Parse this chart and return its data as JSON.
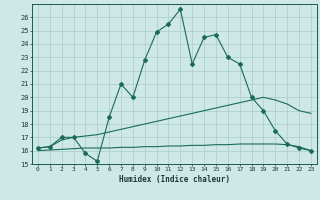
{
  "xlabel": "Humidex (Indice chaleur)",
  "ylabel": "",
  "bg_color": "#cde8e5",
  "grid_color": "#aacccc",
  "line_color": "#1a6b5a",
  "xlim": [
    -0.5,
    23.5
  ],
  "ylim": [
    15,
    27
  ],
  "yticks": [
    15,
    16,
    17,
    18,
    19,
    20,
    21,
    22,
    23,
    24,
    25,
    26
  ],
  "xticks": [
    0,
    1,
    2,
    3,
    4,
    5,
    6,
    7,
    8,
    9,
    10,
    11,
    12,
    13,
    14,
    15,
    16,
    17,
    18,
    19,
    20,
    21,
    22,
    23
  ],
  "line1_x": [
    0,
    1,
    2,
    3,
    4,
    5,
    6,
    7,
    8,
    9,
    10,
    11,
    12,
    13,
    14,
    15,
    16,
    17,
    18,
    19,
    20,
    21,
    22,
    23
  ],
  "line1_y": [
    16.2,
    16.3,
    17.0,
    17.0,
    15.8,
    15.2,
    18.5,
    21.0,
    20.0,
    22.8,
    24.9,
    25.5,
    26.6,
    22.5,
    24.5,
    24.7,
    23.0,
    22.5,
    20.0,
    19.0,
    17.5,
    16.5,
    16.2,
    16.0
  ],
  "line2_x": [
    0,
    1,
    2,
    3,
    4,
    5,
    6,
    7,
    8,
    9,
    10,
    11,
    12,
    13,
    14,
    15,
    16,
    17,
    18,
    19,
    20,
    21,
    22,
    23
  ],
  "line2_y": [
    16.2,
    16.3,
    16.8,
    17.0,
    17.1,
    17.2,
    17.4,
    17.6,
    17.8,
    18.0,
    18.2,
    18.4,
    18.6,
    18.8,
    19.0,
    19.2,
    19.4,
    19.6,
    19.8,
    20.0,
    19.8,
    19.5,
    19.0,
    18.8
  ],
  "line3_x": [
    0,
    1,
    2,
    3,
    4,
    5,
    6,
    7,
    8,
    9,
    10,
    11,
    12,
    13,
    14,
    15,
    16,
    17,
    18,
    19,
    20,
    21,
    22,
    23
  ],
  "line3_y": [
    16.0,
    16.05,
    16.1,
    16.15,
    16.2,
    16.2,
    16.2,
    16.25,
    16.25,
    16.3,
    16.3,
    16.35,
    16.35,
    16.4,
    16.4,
    16.45,
    16.45,
    16.5,
    16.5,
    16.5,
    16.5,
    16.45,
    16.3,
    16.0
  ]
}
